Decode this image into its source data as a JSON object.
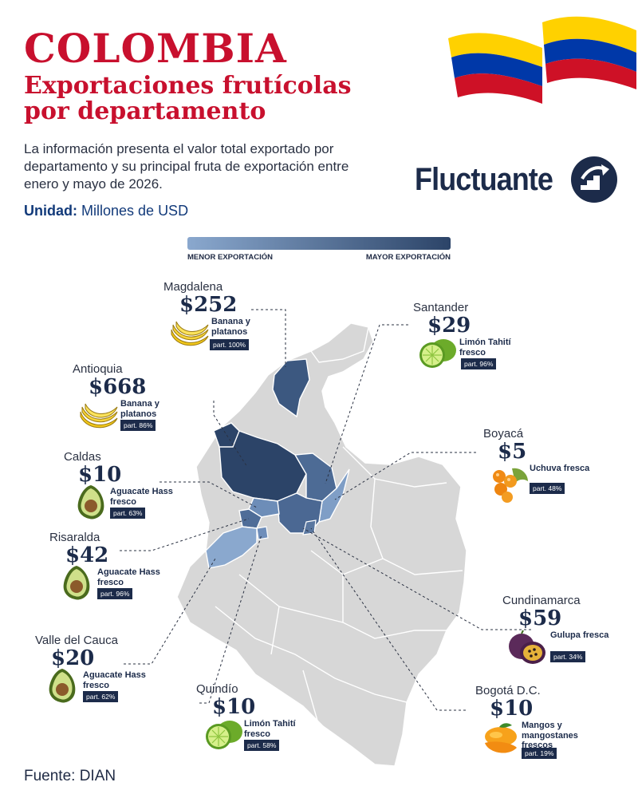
{
  "header": {
    "title": "COLOMBIA",
    "subtitle": "Exportaciones frutícolas por departamento",
    "description": "La información presenta el valor total exportado por departamento y su principal fruta de exportación entre enero y mayo de 2026.",
    "unit_label": "Unidad:",
    "unit_value": "Millones de USD"
  },
  "brand": {
    "name": "Fluctuante"
  },
  "legend": {
    "low_label": "MENOR EXPORTACIÓN",
    "high_label": "MAYOR EXPORTACIÓN",
    "low_color": "#8aa8ce",
    "high_color": "#2c4468"
  },
  "colors": {
    "title_red": "#c8102e",
    "navy": "#1c2b4a",
    "map_gray": "#d7d7d7",
    "flag_yellow": "#ffd100",
    "flag_blue": "#0038a8",
    "flag_red": "#ce1126"
  },
  "departments": [
    {
      "id": "magdalena",
      "name": "Magdalena",
      "value": "$252",
      "fruit": "Banana y platanos",
      "share": "part. 100%",
      "icon": "banana-icon"
    },
    {
      "id": "antioquia",
      "name": "Antioquia",
      "value": "$668",
      "fruit": "Banana y platanos",
      "share": "part. 86%",
      "icon": "banana-icon"
    },
    {
      "id": "caldas",
      "name": "Caldas",
      "value": "$10",
      "fruit": "Aguacate Hass fresco",
      "share": "part. 63%",
      "icon": "avocado-icon"
    },
    {
      "id": "risaralda",
      "name": "Risaralda",
      "value": "$42",
      "fruit": "Aguacate Hass fresco",
      "share": "part. 96%",
      "icon": "avocado-icon"
    },
    {
      "id": "valle",
      "name": "Valle del Cauca",
      "value": "$20",
      "fruit": "Aguacate Hass fresco",
      "share": "part. 62%",
      "icon": "avocado-icon"
    },
    {
      "id": "quindio",
      "name": "Quindío",
      "value": "$10",
      "fruit": "Limón Tahití fresco",
      "share": "part. 58%",
      "icon": "lime-icon"
    },
    {
      "id": "santander",
      "name": "Santander",
      "value": "$29",
      "fruit": "Limón Tahití fresco",
      "share": "part. 96%",
      "icon": "lime-icon"
    },
    {
      "id": "boyaca",
      "name": "Boyacá",
      "value": "$5",
      "fruit": "Uchuva fresca",
      "share": "part. 48%",
      "icon": "goldenberry-icon"
    },
    {
      "id": "cundinamarca",
      "name": "Cundinamarca",
      "value": "$59",
      "fruit": "Gulupa fresca",
      "share": "part. 34%",
      "icon": "passionfruit-icon"
    },
    {
      "id": "bogota",
      "name": "Bogotá D.C.",
      "value": "$10",
      "fruit": "Mangos y mangostanes frescos",
      "share": "part. 19%",
      "icon": "mango-icon"
    }
  ],
  "source": "Fuente: DIAN"
}
